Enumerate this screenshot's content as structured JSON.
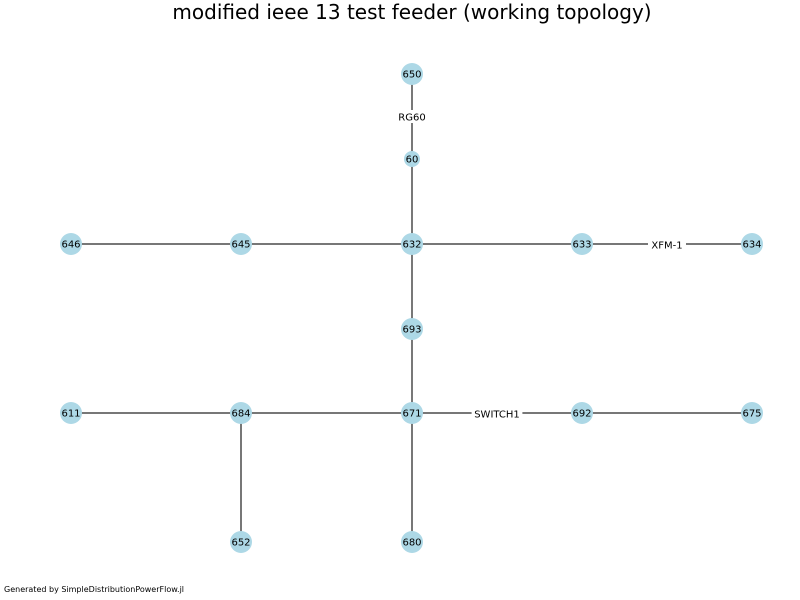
{
  "title": "modified ieee 13 test feeder (working topology)",
  "footer": "Generated by SimpleDistributionPowerFlow.jl",
  "colors": {
    "node": "#add8e6",
    "edge": "#4a4a4a",
    "background": "#ffffff"
  },
  "graph": {
    "nodes": [
      {
        "id": "650",
        "label": "650"
      },
      {
        "id": "60",
        "label": "60"
      },
      {
        "id": "646",
        "label": "646"
      },
      {
        "id": "645",
        "label": "645"
      },
      {
        "id": "632",
        "label": "632"
      },
      {
        "id": "633",
        "label": "633"
      },
      {
        "id": "634",
        "label": "634"
      },
      {
        "id": "693",
        "label": "693"
      },
      {
        "id": "611",
        "label": "611"
      },
      {
        "id": "684",
        "label": "684"
      },
      {
        "id": "671",
        "label": "671"
      },
      {
        "id": "692",
        "label": "692"
      },
      {
        "id": "675",
        "label": "675"
      },
      {
        "id": "652",
        "label": "652"
      },
      {
        "id": "680",
        "label": "680"
      }
    ],
    "edges": [
      {
        "from": "650",
        "to": "60",
        "label": "RG60"
      },
      {
        "from": "60",
        "to": "632",
        "label": ""
      },
      {
        "from": "646",
        "to": "645",
        "label": ""
      },
      {
        "from": "645",
        "to": "632",
        "label": ""
      },
      {
        "from": "632",
        "to": "633",
        "label": ""
      },
      {
        "from": "633",
        "to": "634",
        "label": "XFM-1"
      },
      {
        "from": "632",
        "to": "693",
        "label": ""
      },
      {
        "from": "693",
        "to": "671",
        "label": ""
      },
      {
        "from": "611",
        "to": "684",
        "label": ""
      },
      {
        "from": "684",
        "to": "671",
        "label": ""
      },
      {
        "from": "671",
        "to": "692",
        "label": "SWITCH1"
      },
      {
        "from": "692",
        "to": "675",
        "label": ""
      },
      {
        "from": "684",
        "to": "652",
        "label": ""
      },
      {
        "from": "671",
        "to": "680",
        "label": ""
      }
    ]
  }
}
